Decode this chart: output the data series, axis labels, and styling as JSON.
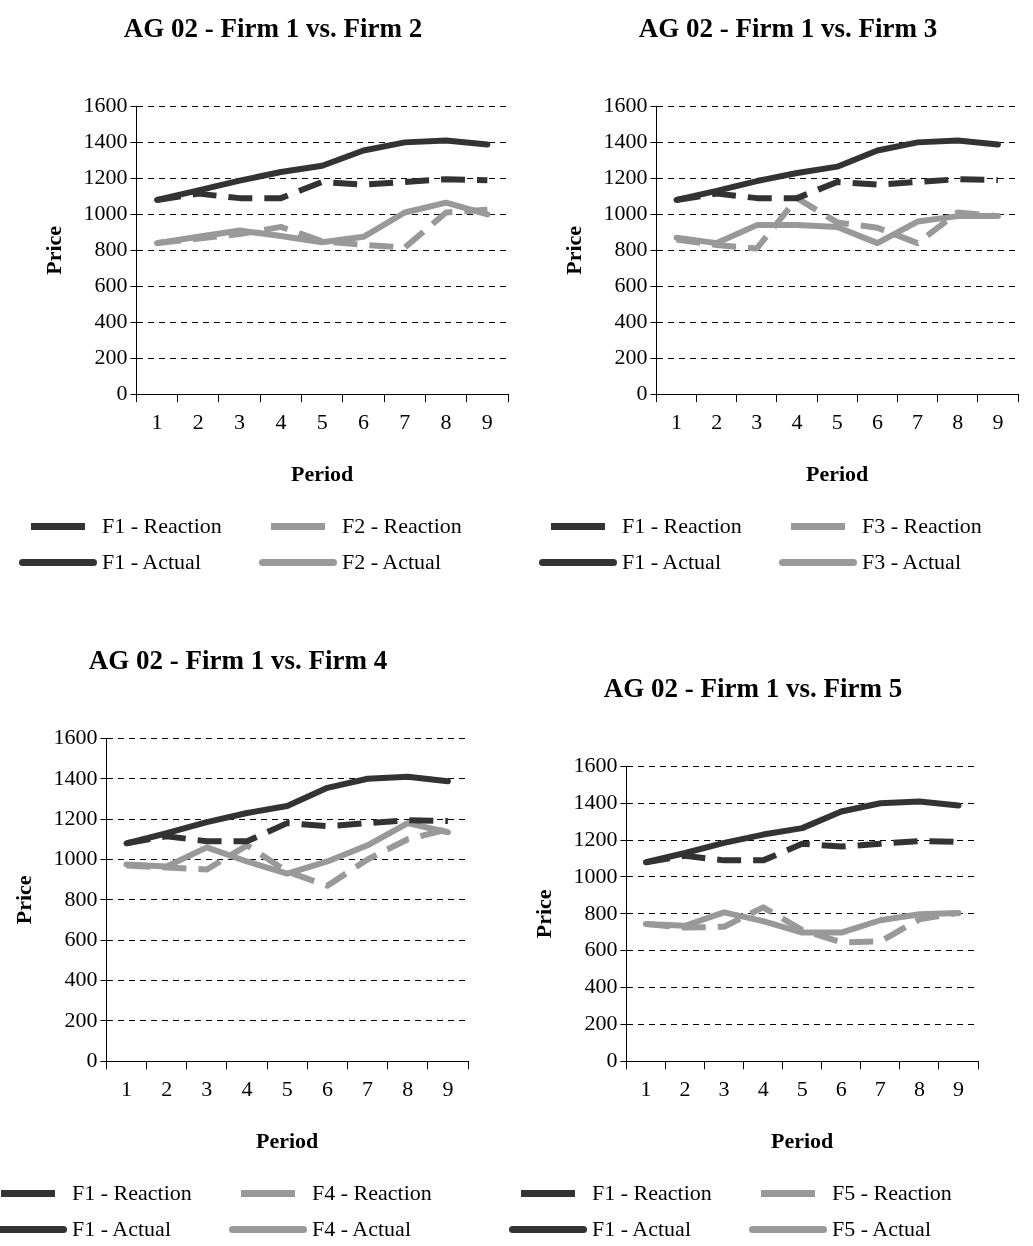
{
  "chart_data": [
    {
      "type": "line",
      "title": "AG 02 - Firm 1 vs. Firm 2",
      "xlabel": "Period",
      "ylabel": "Price",
      "categories": [
        "1",
        "2",
        "3",
        "4",
        "5",
        "6",
        "7",
        "8",
        "9"
      ],
      "ylim": [
        0,
        1600
      ],
      "yticks": [
        0,
        200,
        400,
        600,
        800,
        1000,
        1200,
        1400,
        1600
      ],
      "grid": "y",
      "legend": "bottom",
      "marker": "none",
      "series": [
        {
          "name": "F1 - Reaction",
          "color": "#333333",
          "line_style": "dashed",
          "values": [
            1080,
            1115,
            1090,
            1090,
            1180,
            1165,
            1180,
            1195,
            1190
          ]
        },
        {
          "name": "F2 - Reaction",
          "color": "#999999",
          "line_style": "dashed",
          "values": [
            840,
            865,
            890,
            930,
            850,
            830,
            815,
            1010,
            1025
          ]
        },
        {
          "name": "F1 - Actual",
          "color": "#333333",
          "line_style": "solid",
          "values": [
            1080,
            1133,
            1187,
            1235,
            1270,
            1355,
            1400,
            1410,
            1388
          ]
        },
        {
          "name": "F2 - Actual",
          "color": "#999999",
          "line_style": "solid",
          "values": [
            840,
            875,
            910,
            880,
            845,
            875,
            1010,
            1065,
            1000
          ]
        }
      ]
    },
    {
      "type": "line",
      "title": "AG 02 - Firm 1 vs. Firm 3",
      "xlabel": "Period",
      "ylabel": "Price",
      "categories": [
        "1",
        "2",
        "3",
        "4",
        "5",
        "6",
        "7",
        "8",
        "9"
      ],
      "ylim": [
        0,
        1600
      ],
      "yticks": [
        0,
        200,
        400,
        600,
        800,
        1000,
        1200,
        1400,
        1600
      ],
      "grid": "y",
      "legend": "bottom",
      "marker": "none",
      "series": [
        {
          "name": "F1 - Reaction",
          "color": "#333333",
          "line_style": "dashed",
          "values": [
            1080,
            1115,
            1090,
            1090,
            1180,
            1165,
            1180,
            1195,
            1190
          ]
        },
        {
          "name": "F3 - Reaction",
          "color": "#999999",
          "line_style": "dashed",
          "values": [
            860,
            830,
            810,
            1090,
            955,
            925,
            840,
            1010,
            990
          ]
        },
        {
          "name": "F1 - Actual",
          "color": "#333333",
          "line_style": "solid",
          "values": [
            1080,
            1130,
            1185,
            1230,
            1265,
            1355,
            1400,
            1410,
            1388
          ]
        },
        {
          "name": "F3 - Actual",
          "color": "#999999",
          "line_style": "solid",
          "values": [
            870,
            840,
            940,
            940,
            930,
            840,
            960,
            990,
            990
          ]
        }
      ]
    },
    {
      "type": "line",
      "title": "AG 02 - Firm 1 vs. Firm 4",
      "xlabel": "Period",
      "ylabel": "Price",
      "categories": [
        "1",
        "2",
        "3",
        "4",
        "5",
        "6",
        "7",
        "8",
        "9"
      ],
      "ylim": [
        0,
        1600
      ],
      "yticks": [
        0,
        200,
        400,
        600,
        800,
        1000,
        1200,
        1400,
        1600
      ],
      "grid": "y",
      "legend": "bottom",
      "marker": "none",
      "series": [
        {
          "name": "F1 - Reaction",
          "color": "#333333",
          "line_style": "dashed",
          "values": [
            1080,
            1115,
            1090,
            1090,
            1180,
            1165,
            1180,
            1195,
            1190
          ]
        },
        {
          "name": "F4 - Reaction",
          "color": "#999999",
          "line_style": "dashed",
          "values": [
            970,
            960,
            950,
            1070,
            940,
            870,
            1000,
            1100,
            1150
          ]
        },
        {
          "name": "F1 - Actual",
          "color": "#333333",
          "line_style": "solid",
          "values": [
            1080,
            1130,
            1185,
            1230,
            1265,
            1355,
            1400,
            1410,
            1388
          ]
        },
        {
          "name": "F4 - Actual",
          "color": "#999999",
          "line_style": "solid",
          "values": [
            975,
            965,
            1060,
            990,
            930,
            990,
            1070,
            1180,
            1135
          ]
        }
      ]
    },
    {
      "type": "line",
      "title": "AG 02 - Firm 1 vs. Firm 5",
      "xlabel": "Period",
      "ylabel": "Price",
      "categories": [
        "1",
        "2",
        "3",
        "4",
        "5",
        "6",
        "7",
        "8",
        "9"
      ],
      "ylim": [
        0,
        1600
      ],
      "yticks": [
        0,
        200,
        400,
        600,
        800,
        1000,
        1200,
        1400,
        1600
      ],
      "grid": "y",
      "legend": "bottom",
      "marker": "none",
      "series": [
        {
          "name": "F1 - Reaction",
          "color": "#333333",
          "line_style": "dashed",
          "values": [
            1080,
            1115,
            1090,
            1090,
            1180,
            1165,
            1180,
            1195,
            1190
          ]
        },
        {
          "name": "F5 - Reaction",
          "color": "#999999",
          "line_style": "dashed",
          "values": [
            745,
            725,
            730,
            835,
            712,
            645,
            650,
            770,
            805
          ]
        },
        {
          "name": "F1 - Actual",
          "color": "#333333",
          "line_style": "solid",
          "values": [
            1080,
            1130,
            1185,
            1230,
            1265,
            1355,
            1400,
            1410,
            1388
          ]
        },
        {
          "name": "F5 - Actual",
          "color": "#999999",
          "line_style": "solid",
          "values": [
            745,
            735,
            808,
            760,
            698,
            698,
            765,
            798,
            804
          ]
        }
      ]
    }
  ]
}
